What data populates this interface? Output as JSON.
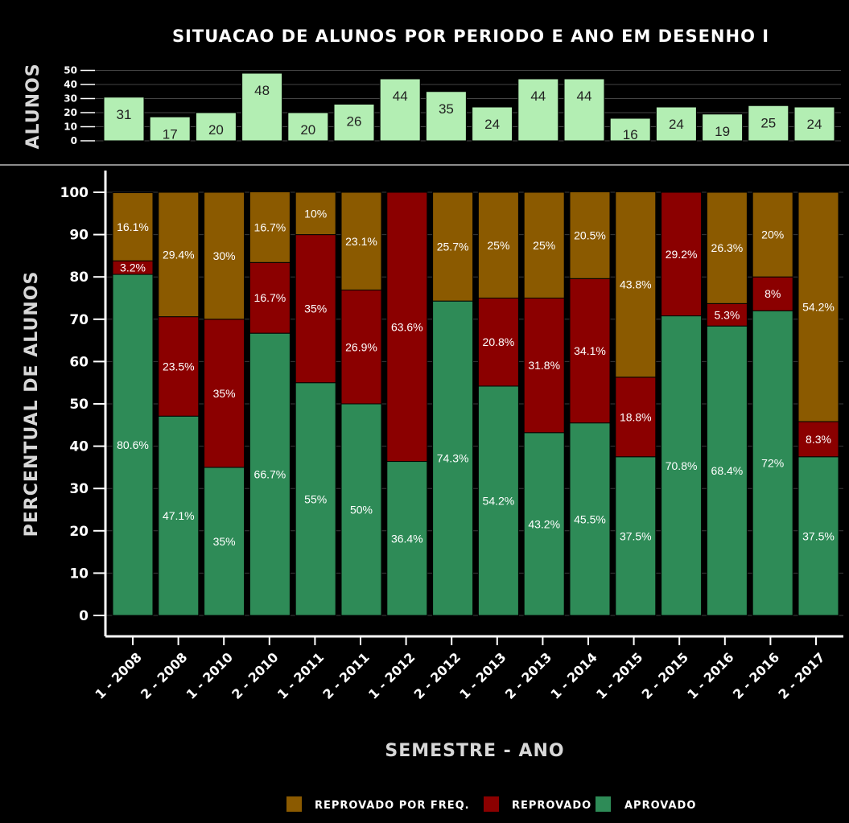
{
  "chart_data": {
    "title": "SITUACAO DE ALUNOS POR PERIODO E ANO EM DESENHO I",
    "xlabel": "SEMESTRE - ANO",
    "colors": {
      "reprovado_freq": "#8b5a00",
      "reprovado": "#8b0000",
      "aprovado": "#2e8b57",
      "count_bar": "#b3eeb3"
    },
    "categories": [
      "1 - 2008",
      "2 - 2008",
      "1 - 2010",
      "2 - 2010",
      "1 - 2011",
      "2 - 2011",
      "1 - 2012",
      "2 - 2012",
      "1 - 2013",
      "2 - 2013",
      "1 - 2014",
      "1 - 2015",
      "2 - 2015",
      "1 - 2016",
      "2 - 2016",
      "2 - 2017"
    ],
    "top_panel": {
      "type": "bar",
      "ylabel": "ALUNOS",
      "ylim": [
        0,
        50
      ],
      "yticks": [
        0,
        10,
        20,
        30,
        40,
        50
      ],
      "values": [
        31,
        17,
        20,
        48,
        20,
        26,
        44,
        35,
        24,
        44,
        44,
        16,
        24,
        19,
        25,
        24
      ]
    },
    "main_panel": {
      "type": "bar",
      "stacked": true,
      "ylabel": "PERCENTUAL DE ALUNOS",
      "ylim": [
        0,
        100
      ],
      "yticks": [
        0,
        10,
        20,
        30,
        40,
        50,
        60,
        70,
        80,
        90,
        100
      ],
      "series": [
        {
          "name": "APROVADO",
          "key": "aprovado",
          "values": [
            80.6,
            47.1,
            35,
            66.7,
            55,
            50,
            36.4,
            74.3,
            54.2,
            43.2,
            45.5,
            37.5,
            70.8,
            68.4,
            72,
            37.5
          ]
        },
        {
          "name": "REPROVADO",
          "key": "reprovado",
          "values": [
            3.2,
            23.5,
            35,
            16.7,
            35,
            26.9,
            63.6,
            0,
            20.8,
            31.8,
            34.1,
            18.8,
            29.2,
            5.3,
            8,
            8.3
          ]
        },
        {
          "name": "REPROVADO POR FREQ.",
          "key": "reprovado_freq",
          "values": [
            16.1,
            29.4,
            30,
            16.7,
            10,
            23.1,
            0,
            25.7,
            25,
            25,
            20.5,
            43.8,
            0,
            26.3,
            20,
            54.2
          ]
        }
      ]
    },
    "legend": [
      {
        "label": "REPROVADO POR FREQ.",
        "key": "reprovado_freq"
      },
      {
        "label": "REPROVADO",
        "key": "reprovado"
      },
      {
        "label": "APROVADO",
        "key": "aprovado"
      }
    ]
  }
}
